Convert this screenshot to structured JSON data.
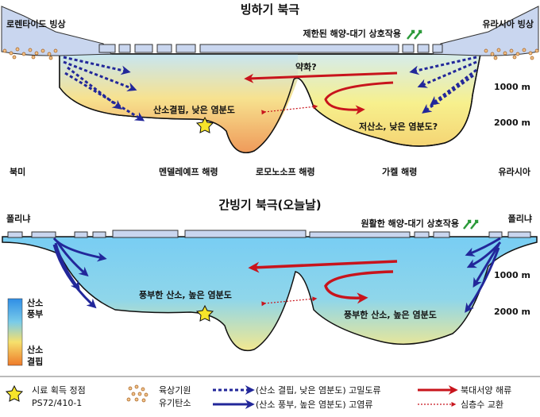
{
  "panels": {
    "glacial": {
      "title": "빙하기 북극",
      "ice_left": "로렌타이드 빙상",
      "ice_right": "유라시아 빙상",
      "exchange": "제한된 해양-대기 상호작용",
      "weakened": "약화?",
      "left_water": "산소결핍, 낮은 염분도",
      "right_water": "저산소, 낮은 염분도?",
      "depth_1000": "1000 m",
      "depth_2000": "2000 m",
      "bottom_left": "북미",
      "bottom_ridge1": "멘델레예프 해령",
      "bottom_ridge2": "로모노소프 해령",
      "bottom_ridge3": "가켈 해령",
      "bottom_right": "유라시아"
    },
    "interglacial": {
      "title": "간빙기 북극(오늘날)",
      "left_label": "폴리냐",
      "right_label": "폴리냐",
      "exchange": "원활한 해양-대기 상호작용",
      "left_water": "풍부한 산소, 높은 염분도",
      "right_water": "풍부한 산소, 높은 염분도",
      "depth_1000": "1000 m",
      "depth_2000": "2000 m",
      "scale_top": "산소 풍부",
      "scale_bottom": "산소 결핍"
    }
  },
  "legend": {
    "star": "시료 획득 정점 PS72/410-1",
    "dots": "육상기원 유기탄소",
    "dotted_arrow": "(산소 결핍, 낮은 염분도) 고밀도류",
    "solid_arrow": "(산소 풍부, 높은 염분도) 고염류",
    "red_arrow": "북대서양 해류",
    "red_dotted": "심층수 교환"
  },
  "colors": {
    "ice": "#c9d6ef",
    "water_top_glacial": "#bfe3f4",
    "water_bottom_glacial": "#f4a45a",
    "water_blue": "#5fc3ee",
    "arrow_blue": "#22279a",
    "arrow_red": "#c8141c",
    "accent_green": "#2c9a3a",
    "star": "#f7e52a"
  }
}
